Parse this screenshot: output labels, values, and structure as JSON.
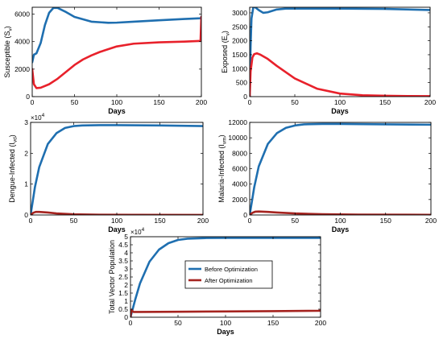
{
  "colors": {
    "before": "#1f6fb0",
    "after": "#e8212b",
    "after_dark": "#a5231f"
  },
  "chart_data": [
    {
      "id": "susceptible",
      "type": "line",
      "ylabel": "Susceptible (S_v)",
      "xlabel": "Days",
      "xlim": [
        0,
        200
      ],
      "ylim": [
        0,
        6500
      ],
      "xticks": [
        0,
        50,
        100,
        150,
        200
      ],
      "yticks": [
        0,
        2000,
        4000,
        6000
      ],
      "ytick_labels": [
        "0",
        "2000",
        "4000",
        "6000"
      ],
      "exponent": "",
      "series": [
        {
          "color_key": "before",
          "x": [
            0,
            2,
            5,
            10,
            15,
            20,
            25,
            30,
            40,
            50,
            70,
            90,
            100,
            120,
            150,
            180,
            199,
            200
          ],
          "y": [
            2500,
            3050,
            3150,
            3900,
            5200,
            6100,
            6450,
            6450,
            6150,
            5800,
            5450,
            5370,
            5380,
            5450,
            5550,
            5650,
            5700,
            5800
          ]
        },
        {
          "color_key": "after",
          "x": [
            0,
            2,
            5,
            10,
            20,
            30,
            40,
            50,
            60,
            70,
            80,
            100,
            120,
            150,
            180,
            199,
            200
          ],
          "y": [
            2000,
            900,
            620,
            650,
            900,
            1300,
            1800,
            2300,
            2700,
            3000,
            3250,
            3650,
            3850,
            3950,
            4000,
            4050,
            5800
          ]
        }
      ]
    },
    {
      "id": "exposed",
      "type": "line",
      "ylabel": "Exposed (E_v)",
      "xlabel": "Days",
      "xlim": [
        0,
        200
      ],
      "ylim": [
        0,
        3200
      ],
      "xticks": [
        0,
        50,
        100,
        150,
        200
      ],
      "yticks": [
        0,
        500,
        1000,
        1500,
        2000,
        2500,
        3000
      ],
      "ytick_labels": [
        "0",
        "500",
        "1000",
        "1500",
        "2000",
        "2500",
        "3000"
      ],
      "exponent": "",
      "series": [
        {
          "color_key": "before",
          "x": [
            0,
            1,
            2,
            4,
            6,
            10,
            15,
            20,
            30,
            40,
            60,
            100,
            150,
            200
          ],
          "y": [
            0,
            1800,
            2800,
            3200,
            3200,
            3100,
            3000,
            3020,
            3120,
            3150,
            3150,
            3150,
            3140,
            3100
          ]
        },
        {
          "color_key": "after",
          "x": [
            0,
            1,
            3,
            5,
            8,
            12,
            20,
            30,
            50,
            75,
            100,
            125,
            150,
            175,
            200
          ],
          "y": [
            0,
            900,
            1400,
            1520,
            1550,
            1500,
            1350,
            1100,
            650,
            280,
            110,
            50,
            30,
            20,
            15
          ]
        }
      ]
    },
    {
      "id": "dengue",
      "type": "line",
      "ylabel": "Dengue-Infected (I_vd)",
      "xlabel": "Days",
      "xlim": [
        0,
        200
      ],
      "ylim": [
        0,
        3
      ],
      "xticks": [
        0,
        50,
        100,
        150,
        200
      ],
      "yticks": [
        0,
        1,
        2,
        3
      ],
      "ytick_labels": [
        "0",
        "1",
        "2",
        "3"
      ],
      "exponent": "4",
      "series": [
        {
          "color_key": "before",
          "x": [
            0,
            5,
            10,
            20,
            30,
            40,
            50,
            60,
            80,
            100,
            150,
            200
          ],
          "y": [
            0,
            0.9,
            1.55,
            2.3,
            2.65,
            2.82,
            2.88,
            2.9,
            2.91,
            2.91,
            2.9,
            2.88
          ]
        },
        {
          "color_key": "after_dark",
          "x": [
            0,
            3,
            6,
            10,
            20,
            30,
            50,
            80,
            120,
            200
          ],
          "y": [
            0,
            0.07,
            0.1,
            0.1,
            0.08,
            0.05,
            0.02,
            0.01,
            0.005,
            0.003
          ]
        }
      ]
    },
    {
      "id": "malaria",
      "type": "line",
      "ylabel": "Malaria-Infected (I_vm)",
      "xlabel": "Days",
      "xlim": [
        0,
        200
      ],
      "ylim": [
        0,
        12000
      ],
      "xticks": [
        0,
        50,
        100,
        150,
        200
      ],
      "yticks": [
        0,
        2000,
        4000,
        6000,
        8000,
        10000,
        12000
      ],
      "ytick_labels": [
        "0",
        "2000",
        "4000",
        "6000",
        "8000",
        "10000",
        "12000"
      ],
      "exponent": "",
      "series": [
        {
          "color_key": "before",
          "x": [
            0,
            5,
            10,
            20,
            30,
            40,
            50,
            60,
            80,
            100,
            150,
            200
          ],
          "y": [
            0,
            3600,
            6300,
            9200,
            10600,
            11300,
            11600,
            11750,
            11800,
            11800,
            11750,
            11700
          ]
        },
        {
          "color_key": "after_dark",
          "x": [
            0,
            3,
            6,
            10,
            20,
            30,
            50,
            80,
            120,
            200
          ],
          "y": [
            0,
            280,
            420,
            450,
            400,
            320,
            200,
            100,
            50,
            20
          ]
        }
      ]
    },
    {
      "id": "total",
      "type": "line",
      "ylabel": "Total Vector Population",
      "xlabel": "Days",
      "xlim": [
        0,
        200
      ],
      "ylim": [
        0,
        5
      ],
      "xticks": [
        0,
        50,
        100,
        150,
        200
      ],
      "yticks": [
        0,
        0.5,
        1,
        1.5,
        2,
        2.5,
        3,
        3.5,
        4,
        4.5,
        5
      ],
      "ytick_labels": [
        "0",
        "0.5",
        "1",
        "1.5",
        "2",
        "2.5",
        "3",
        "3.5",
        "4",
        "4.5",
        "5"
      ],
      "exponent": "4",
      "legend": {
        "position": "center",
        "entries": [
          "Before Optimization",
          "After Optimization"
        ]
      },
      "series": [
        {
          "name": "Before Optimization",
          "color_key": "before",
          "x": [
            0,
            5,
            10,
            20,
            30,
            40,
            50,
            60,
            80,
            100,
            150,
            200
          ],
          "y": [
            0,
            1.1,
            2.1,
            3.45,
            4.2,
            4.6,
            4.8,
            4.88,
            4.92,
            4.93,
            4.93,
            4.93
          ]
        },
        {
          "name": "After Optimization",
          "color_key": "after_dark",
          "x": [
            0,
            1,
            3,
            10,
            50,
            100,
            150,
            199,
            200
          ],
          "y": [
            0,
            0.45,
            0.33,
            0.33,
            0.34,
            0.36,
            0.38,
            0.4,
            0.45
          ]
        }
      ]
    }
  ]
}
